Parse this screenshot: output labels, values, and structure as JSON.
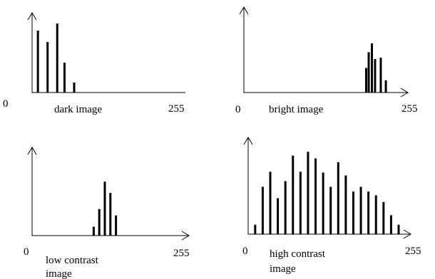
{
  "chart_data": [
    {
      "type": "bar",
      "title": "dark image",
      "x_min_label": "0",
      "x_max_label": "255",
      "xlim": [
        0,
        255
      ],
      "ylim": [
        0,
        100
      ],
      "x": [
        12,
        28,
        44,
        56,
        72
      ],
      "values": [
        87,
        71,
        97,
        42,
        14
      ]
    },
    {
      "type": "bar",
      "title": "bright image",
      "x_min_label": "0",
      "x_max_label": "255",
      "xlim": [
        0,
        255
      ],
      "ylim": [
        0,
        100
      ],
      "x": [
        196,
        200,
        205,
        210,
        219,
        227
      ],
      "values": [
        36,
        59,
        72,
        49,
        51,
        18
      ]
    },
    {
      "type": "bar",
      "title_lines": [
        "low contrast",
        "image"
      ],
      "x_min_label": "0",
      "x_max_label": "255",
      "xlim": [
        0,
        255
      ],
      "ylim": [
        0,
        100
      ],
      "x": [
        102,
        111,
        120,
        129,
        138
      ],
      "values": [
        11,
        33,
        67,
        53,
        25
      ]
    },
    {
      "type": "bar",
      "title_lines": [
        "high contrast",
        "image"
      ],
      "x_min_label": "0",
      "x_max_label": "255",
      "xlim": [
        0,
        255
      ],
      "ylim": [
        0,
        100
      ],
      "x": [
        10,
        22,
        34,
        46,
        58,
        70,
        82,
        94,
        106,
        118,
        130,
        142,
        154,
        166,
        178,
        190,
        202,
        214,
        226,
        238
      ],
      "values": [
        10,
        50,
        66,
        38,
        56,
        83,
        66,
        87,
        80,
        65,
        50,
        76,
        62,
        45,
        50,
        45,
        41,
        34,
        20,
        10
      ]
    }
  ]
}
